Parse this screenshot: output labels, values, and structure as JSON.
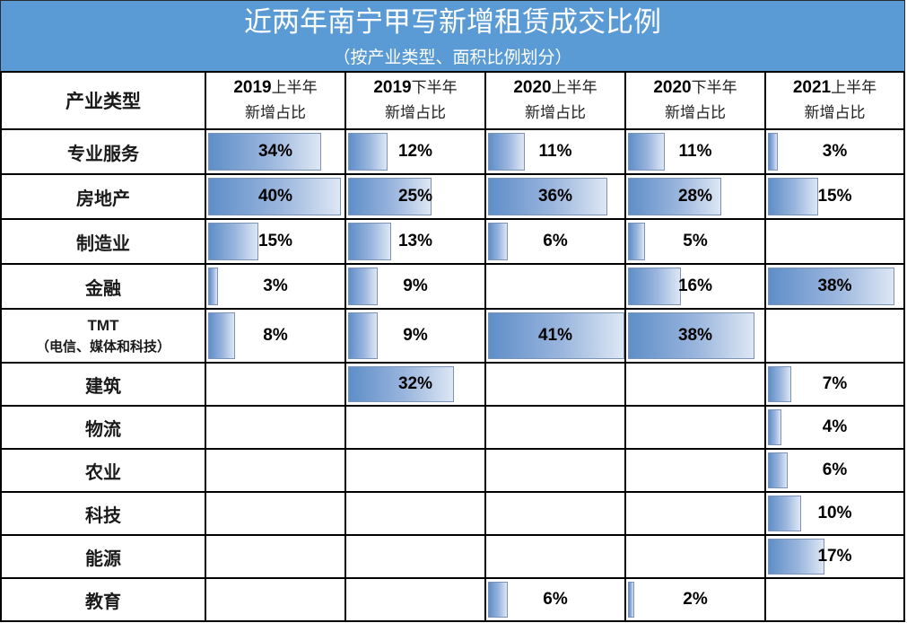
{
  "header": {
    "title": "近两年南宁甲写新增租赁成交比例",
    "subtitle": "（按产业类型、面积比例划分）"
  },
  "table": {
    "category_header": "产业类型",
    "columns": [
      {
        "year": "2019",
        "half": "上半年",
        "sub": "新增占比"
      },
      {
        "year": "2019",
        "half": "下半年",
        "sub": "新增占比"
      },
      {
        "year": "2020",
        "half": "上半年",
        "sub": "新增占比"
      },
      {
        "year": "2020",
        "half": "下半年",
        "sub": "新增占比"
      },
      {
        "year": "2021",
        "half": "上半年",
        "sub": "新增占比"
      }
    ],
    "rows": [
      {
        "category": "专业服务",
        "sub": "",
        "values": [
          "34%",
          "12%",
          "11%",
          "11%",
          "3%"
        ]
      },
      {
        "category": "房地产",
        "sub": "",
        "values": [
          "40%",
          "25%",
          "36%",
          "28%",
          "15%"
        ]
      },
      {
        "category": "制造业",
        "sub": "",
        "values": [
          "15%",
          "13%",
          "6%",
          "5%",
          ""
        ]
      },
      {
        "category": "金融",
        "sub": "",
        "values": [
          "3%",
          "9%",
          "",
          "16%",
          "38%"
        ]
      },
      {
        "category": "TMT",
        "sub": "（电信、媒体和科技）",
        "values": [
          "8%",
          "9%",
          "41%",
          "38%",
          ""
        ]
      },
      {
        "category": "建筑",
        "sub": "",
        "values": [
          "",
          "32%",
          "",
          "",
          "7%"
        ]
      },
      {
        "category": "物流",
        "sub": "",
        "values": [
          "",
          "",
          "",
          "",
          "4%"
        ]
      },
      {
        "category": "农业",
        "sub": "",
        "values": [
          "",
          "",
          "",
          "",
          "6%"
        ]
      },
      {
        "category": "科技",
        "sub": "",
        "values": [
          "",
          "",
          "",
          "",
          "10%"
        ]
      },
      {
        "category": "能源",
        "sub": "",
        "values": [
          "",
          "",
          "",
          "",
          "17%"
        ]
      },
      {
        "category": "教育",
        "sub": "",
        "values": [
          "",
          "",
          "6%",
          "2%",
          ""
        ]
      }
    ]
  },
  "colors": {
    "header_band": "#5b9bd5",
    "bar_start": "#5e8ec8",
    "bar_end": "#dde7f4",
    "grid": "#000000"
  },
  "chart_data": {
    "type": "table",
    "title": "近两年南宁甲写新增租赁成交比例",
    "subtitle": "（按产业类型、面积比例划分）",
    "categories": [
      "专业服务",
      "房地产",
      "制造业",
      "金融",
      "TMT（电信、媒体和科技）",
      "建筑",
      "物流",
      "农业",
      "科技",
      "能源",
      "教育"
    ],
    "series": [
      {
        "name": "2019上半年 新增占比",
        "values": [
          34,
          40,
          15,
          3,
          8,
          null,
          null,
          null,
          null,
          null,
          null
        ]
      },
      {
        "name": "2019下半年 新增占比",
        "values": [
          12,
          25,
          13,
          9,
          9,
          32,
          null,
          null,
          null,
          null,
          null
        ]
      },
      {
        "name": "2020上半年 新增占比",
        "values": [
          11,
          36,
          6,
          null,
          41,
          null,
          null,
          null,
          null,
          null,
          6
        ]
      },
      {
        "name": "2020下半年 新增占比",
        "values": [
          11,
          28,
          5,
          16,
          38,
          null,
          null,
          null,
          null,
          null,
          2
        ]
      },
      {
        "name": "2021上半年 新增占比",
        "values": [
          3,
          15,
          null,
          38,
          null,
          7,
          4,
          6,
          10,
          17,
          null
        ]
      }
    ],
    "unit": "%",
    "notes": "Table with in-cell data bars (blue gradient), bar length proportional to percentage"
  }
}
